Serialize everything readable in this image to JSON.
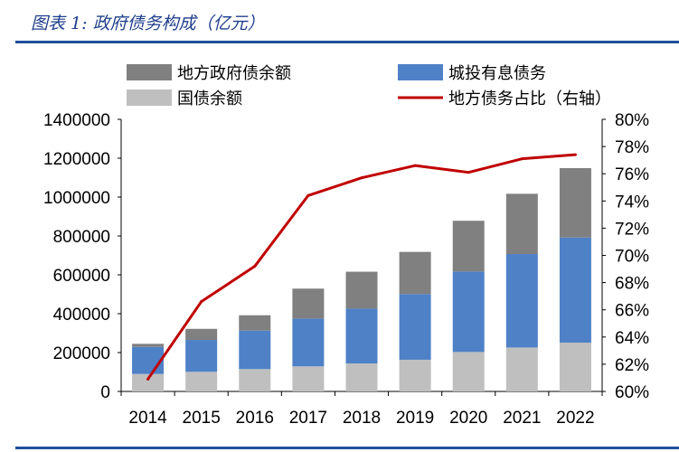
{
  "title": "图表 1:  政府债务构成（亿元）",
  "chart_data": {
    "type": "bar",
    "stacked": true,
    "categories": [
      "2014",
      "2015",
      "2016",
      "2017",
      "2018",
      "2019",
      "2020",
      "2021",
      "2022"
    ],
    "series": [
      {
        "name": "国债余额",
        "type": "bar",
        "axis": "left",
        "color": "#bfbfbf",
        "values": [
          90000,
          101000,
          115000,
          129000,
          144000,
          163000,
          203000,
          226000,
          251000
        ]
      },
      {
        "name": "城投有息债务",
        "type": "bar",
        "axis": "left",
        "color": "#4f81c7",
        "values": [
          139000,
          164000,
          198000,
          246000,
          282000,
          338000,
          414000,
          481000,
          541000
        ]
      },
      {
        "name": "地方政府债余额",
        "type": "bar",
        "axis": "left",
        "color": "#808080",
        "values": [
          16000,
          57000,
          79000,
          154000,
          190000,
          217000,
          261000,
          310000,
          357000
        ]
      },
      {
        "name": "地方债务占比（右轴）",
        "type": "line",
        "axis": "right",
        "color": "#c00000",
        "values": [
          60.9,
          66.6,
          69.2,
          74.4,
          75.7,
          76.6,
          76.1,
          77.1,
          77.4
        ]
      }
    ],
    "ylim": [
      0,
      1400000
    ],
    "yticks": [
      "0",
      "200000",
      "400000",
      "600000",
      "800000",
      "1000000",
      "1200000",
      "1400000"
    ],
    "y2lim": [
      60,
      80
    ],
    "y2ticks": [
      "60%",
      "62%",
      "64%",
      "66%",
      "68%",
      "70%",
      "72%",
      "74%",
      "76%",
      "78%",
      "80%"
    ],
    "grid": false,
    "legend_position": "top"
  }
}
